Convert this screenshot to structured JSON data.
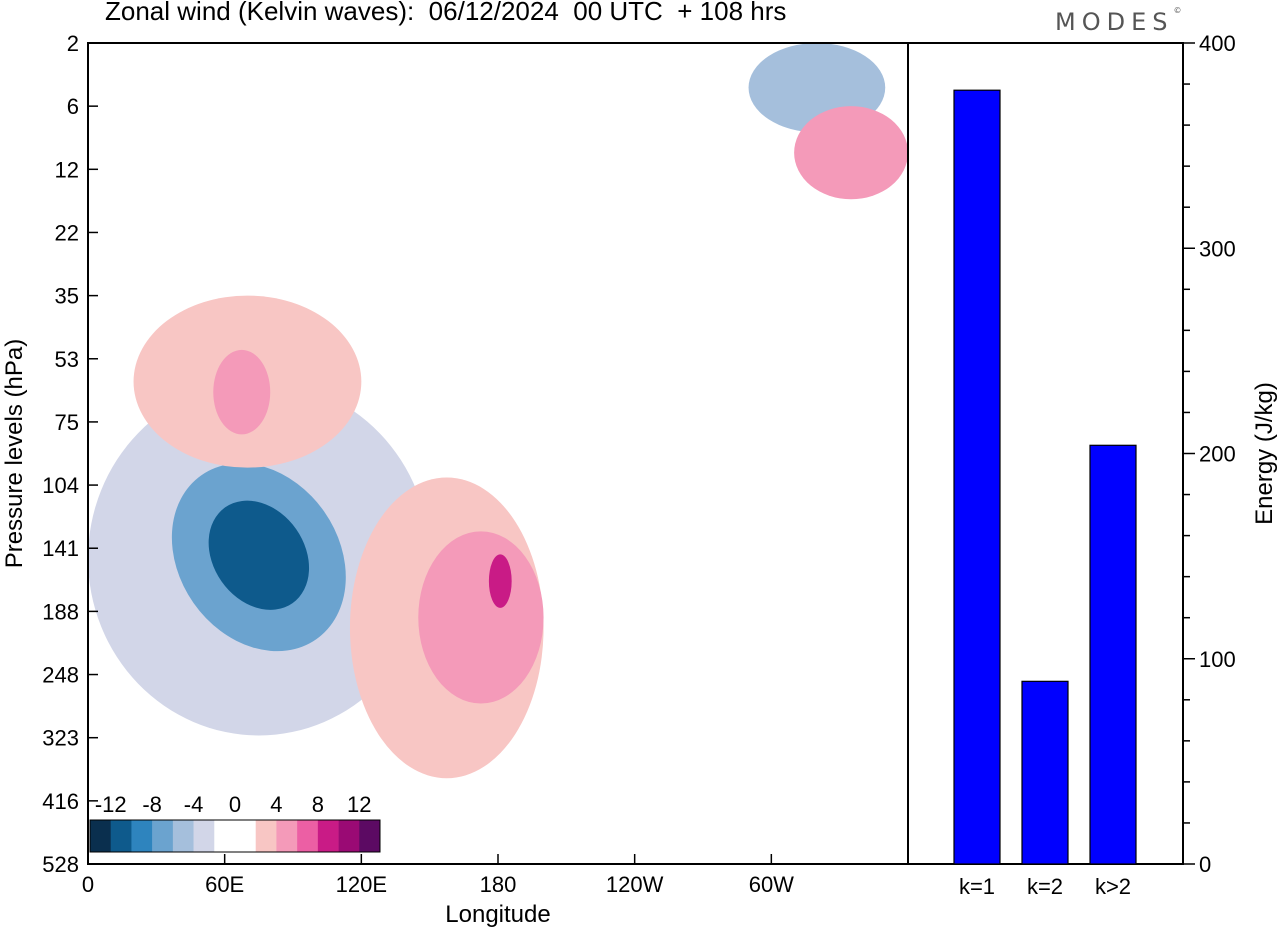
{
  "header": {
    "title": "Zonal wind (Kelvin waves):  06/12/2024  00 UTC  + 108 hrs",
    "brand": "MODES",
    "brand_mark": "©"
  },
  "chart_data": [
    {
      "type": "heatmap",
      "title": "Zonal wind (Kelvin waves):  06/12/2024  00 UTC  + 108 hrs",
      "xlabel": "Longitude",
      "ylabel": "Pressure levels (hPa)",
      "x_ticks": [
        {
          "lon": 0,
          "label": "0"
        },
        {
          "lon": 60,
          "label": "60E"
        },
        {
          "lon": 120,
          "label": "120E"
        },
        {
          "lon": 180,
          "label": "180"
        },
        {
          "lon": 240,
          "label": "120W"
        },
        {
          "lon": 300,
          "label": "60W"
        }
      ],
      "xlim": [
        0,
        360
      ],
      "y_levels": [
        "2",
        "6",
        "12",
        "22",
        "35",
        "53",
        "75",
        "104",
        "141",
        "188",
        "248",
        "323",
        "416",
        "528"
      ],
      "colorbar": {
        "labels": [
          "-12",
          "-8",
          "-4",
          "0",
          "4",
          "8",
          "12"
        ],
        "colors": [
          "#0a2f4e",
          "#0e5a8c",
          "#2e84be",
          "#6ba3cf",
          "#a5bfdc",
          "#d2d6e8",
          "#ffffff",
          "#ffffff",
          "#f8c6c4",
          "#f49ab9",
          "#ec5fa4",
          "#c91b86",
          "#9a0a74",
          "#5c0a63"
        ]
      },
      "features": [
        {
          "sign": "negative",
          "level": 1,
          "lon": [
            0,
            150
          ],
          "hPa": [
            60,
            320
          ]
        },
        {
          "sign": "negative",
          "level": 3,
          "lon": [
            40,
            110
          ],
          "hPa": [
            90,
            230
          ]
        },
        {
          "sign": "negative",
          "level": 5,
          "lon": [
            55,
            95
          ],
          "hPa": [
            110,
            190
          ]
        },
        {
          "sign": "positive",
          "level": 1,
          "lon": [
            115,
            200
          ],
          "hPa": [
            100,
            380
          ]
        },
        {
          "sign": "positive",
          "level": 2,
          "lon": [
            145,
            200
          ],
          "hPa": [
            130,
            280
          ]
        },
        {
          "sign": "positive",
          "level": 4,
          "lon": [
            176,
            186
          ],
          "hPa": [
            145,
            185
          ]
        },
        {
          "sign": "positive",
          "level": 1,
          "lon": [
            20,
            120
          ],
          "hPa": [
            35,
            95
          ]
        },
        {
          "sign": "positive",
          "level": 2,
          "lon": [
            55,
            80
          ],
          "hPa": [
            50,
            80
          ]
        },
        {
          "sign": "negative",
          "level": 2,
          "lon": [
            290,
            350
          ],
          "hPa": [
            2,
            8
          ]
        },
        {
          "sign": "positive",
          "level": 2,
          "lon": [
            310,
            360
          ],
          "hPa": [
            6,
            16
          ]
        }
      ]
    },
    {
      "type": "bar",
      "categories": [
        "k=1",
        "k=2",
        "k>2"
      ],
      "values": [
        377,
        89,
        204
      ],
      "ylabel": "Energy (J/kg)",
      "ylim": [
        0,
        400
      ],
      "y_ticks": [
        0,
        100,
        200,
        300,
        400
      ],
      "bar_color": "#0000ff"
    }
  ]
}
